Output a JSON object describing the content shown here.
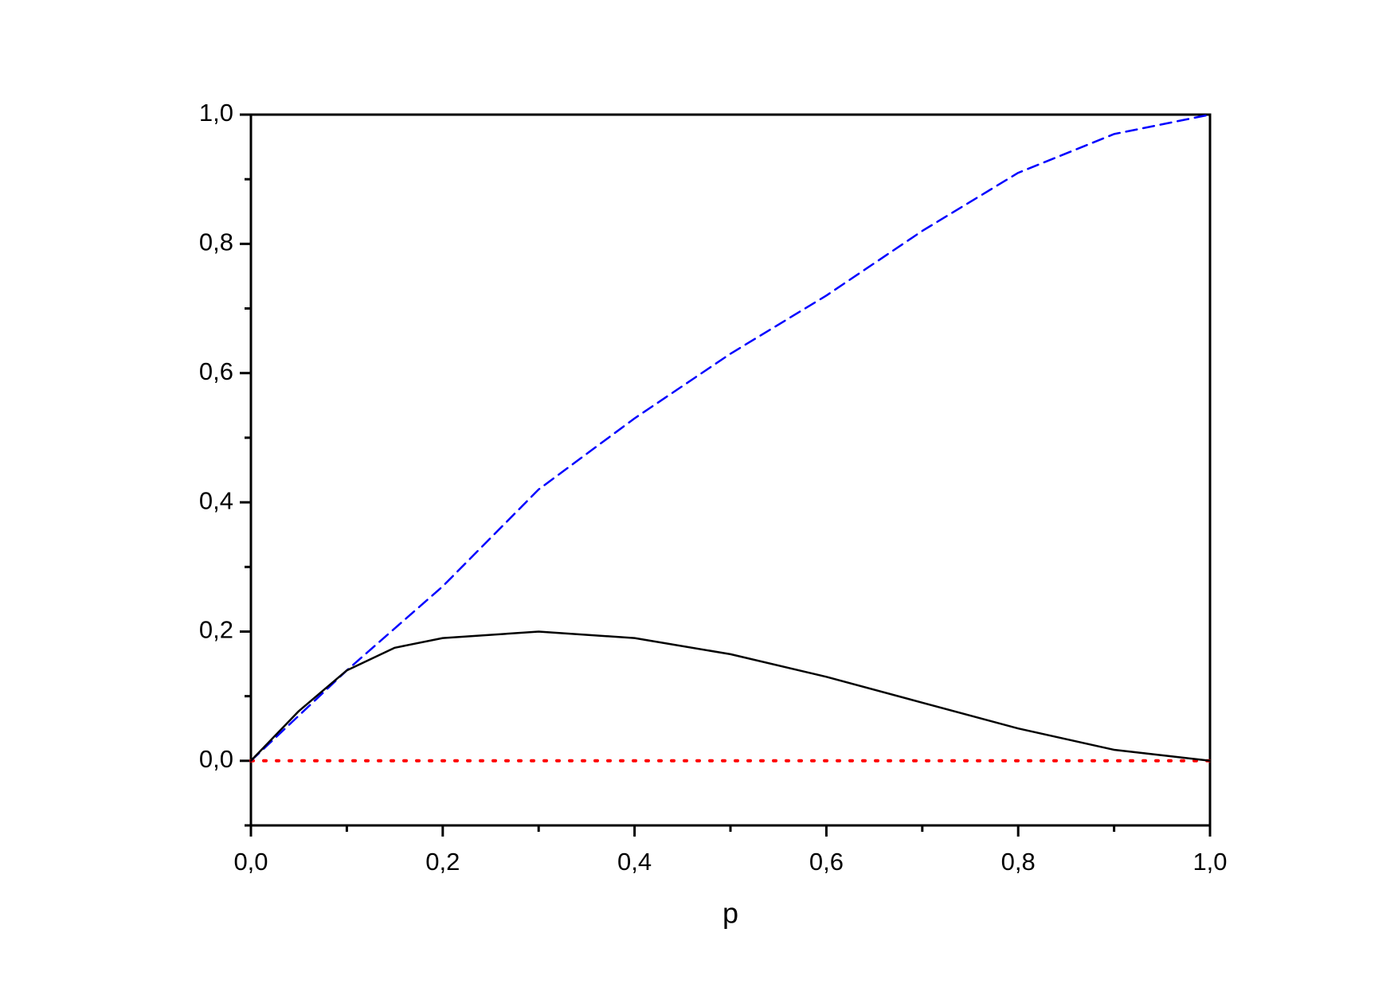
{
  "chart_data": {
    "type": "line",
    "xlabel": "p",
    "x": [
      0,
      0.05,
      0.1,
      0.15,
      0.2,
      0.3,
      0.4,
      0.5,
      0.6,
      0.7,
      0.8,
      0.9,
      1.0
    ],
    "series": [
      {
        "color": "#000000",
        "dash": "solid",
        "values": [
          0,
          0.077,
          0.14,
          0.175,
          0.19,
          0.2,
          0.19,
          0.165,
          0.13,
          0.09,
          0.05,
          0.017,
          0
        ]
      },
      {
        "color": "#0000ff",
        "dash": "dashed",
        "values": [
          0,
          0.07,
          0.14,
          0.205,
          0.27,
          0.42,
          0.53,
          0.63,
          0.72,
          0.82,
          0.91,
          0.97,
          1.0
        ]
      },
      {
        "color": "#ff0000",
        "dash": "dotted",
        "values": [
          0,
          0,
          0,
          0,
          0,
          0,
          0,
          0,
          0,
          0,
          0,
          0,
          0
        ]
      }
    ],
    "xlim": [
      0,
      1.0
    ],
    "ylim": [
      -0.1,
      1.0
    ],
    "xticks": [
      {
        "value": 0,
        "label": "0,0"
      },
      {
        "value": 0.2,
        "label": "0,2"
      },
      {
        "value": 0.4,
        "label": "0,4"
      },
      {
        "value": 0.6,
        "label": "0,6"
      },
      {
        "value": 0.8,
        "label": "0,8"
      },
      {
        "value": 1.0,
        "label": "1,0"
      }
    ],
    "yticks": [
      {
        "value": 0,
        "label": "0,0"
      },
      {
        "value": 0.2,
        "label": "0,2"
      },
      {
        "value": 0.4,
        "label": "0,4"
      },
      {
        "value": 0.6,
        "label": "0,6"
      },
      {
        "value": 0.8,
        "label": "0,8"
      },
      {
        "value": 1.0,
        "label": "1,0"
      }
    ],
    "xminorticks": [
      0.1,
      0.3,
      0.5,
      0.7,
      0.9
    ],
    "yminorticks": [
      -0.1,
      0.1,
      0.3,
      0.5,
      0.7,
      0.9
    ],
    "grid": false
  }
}
